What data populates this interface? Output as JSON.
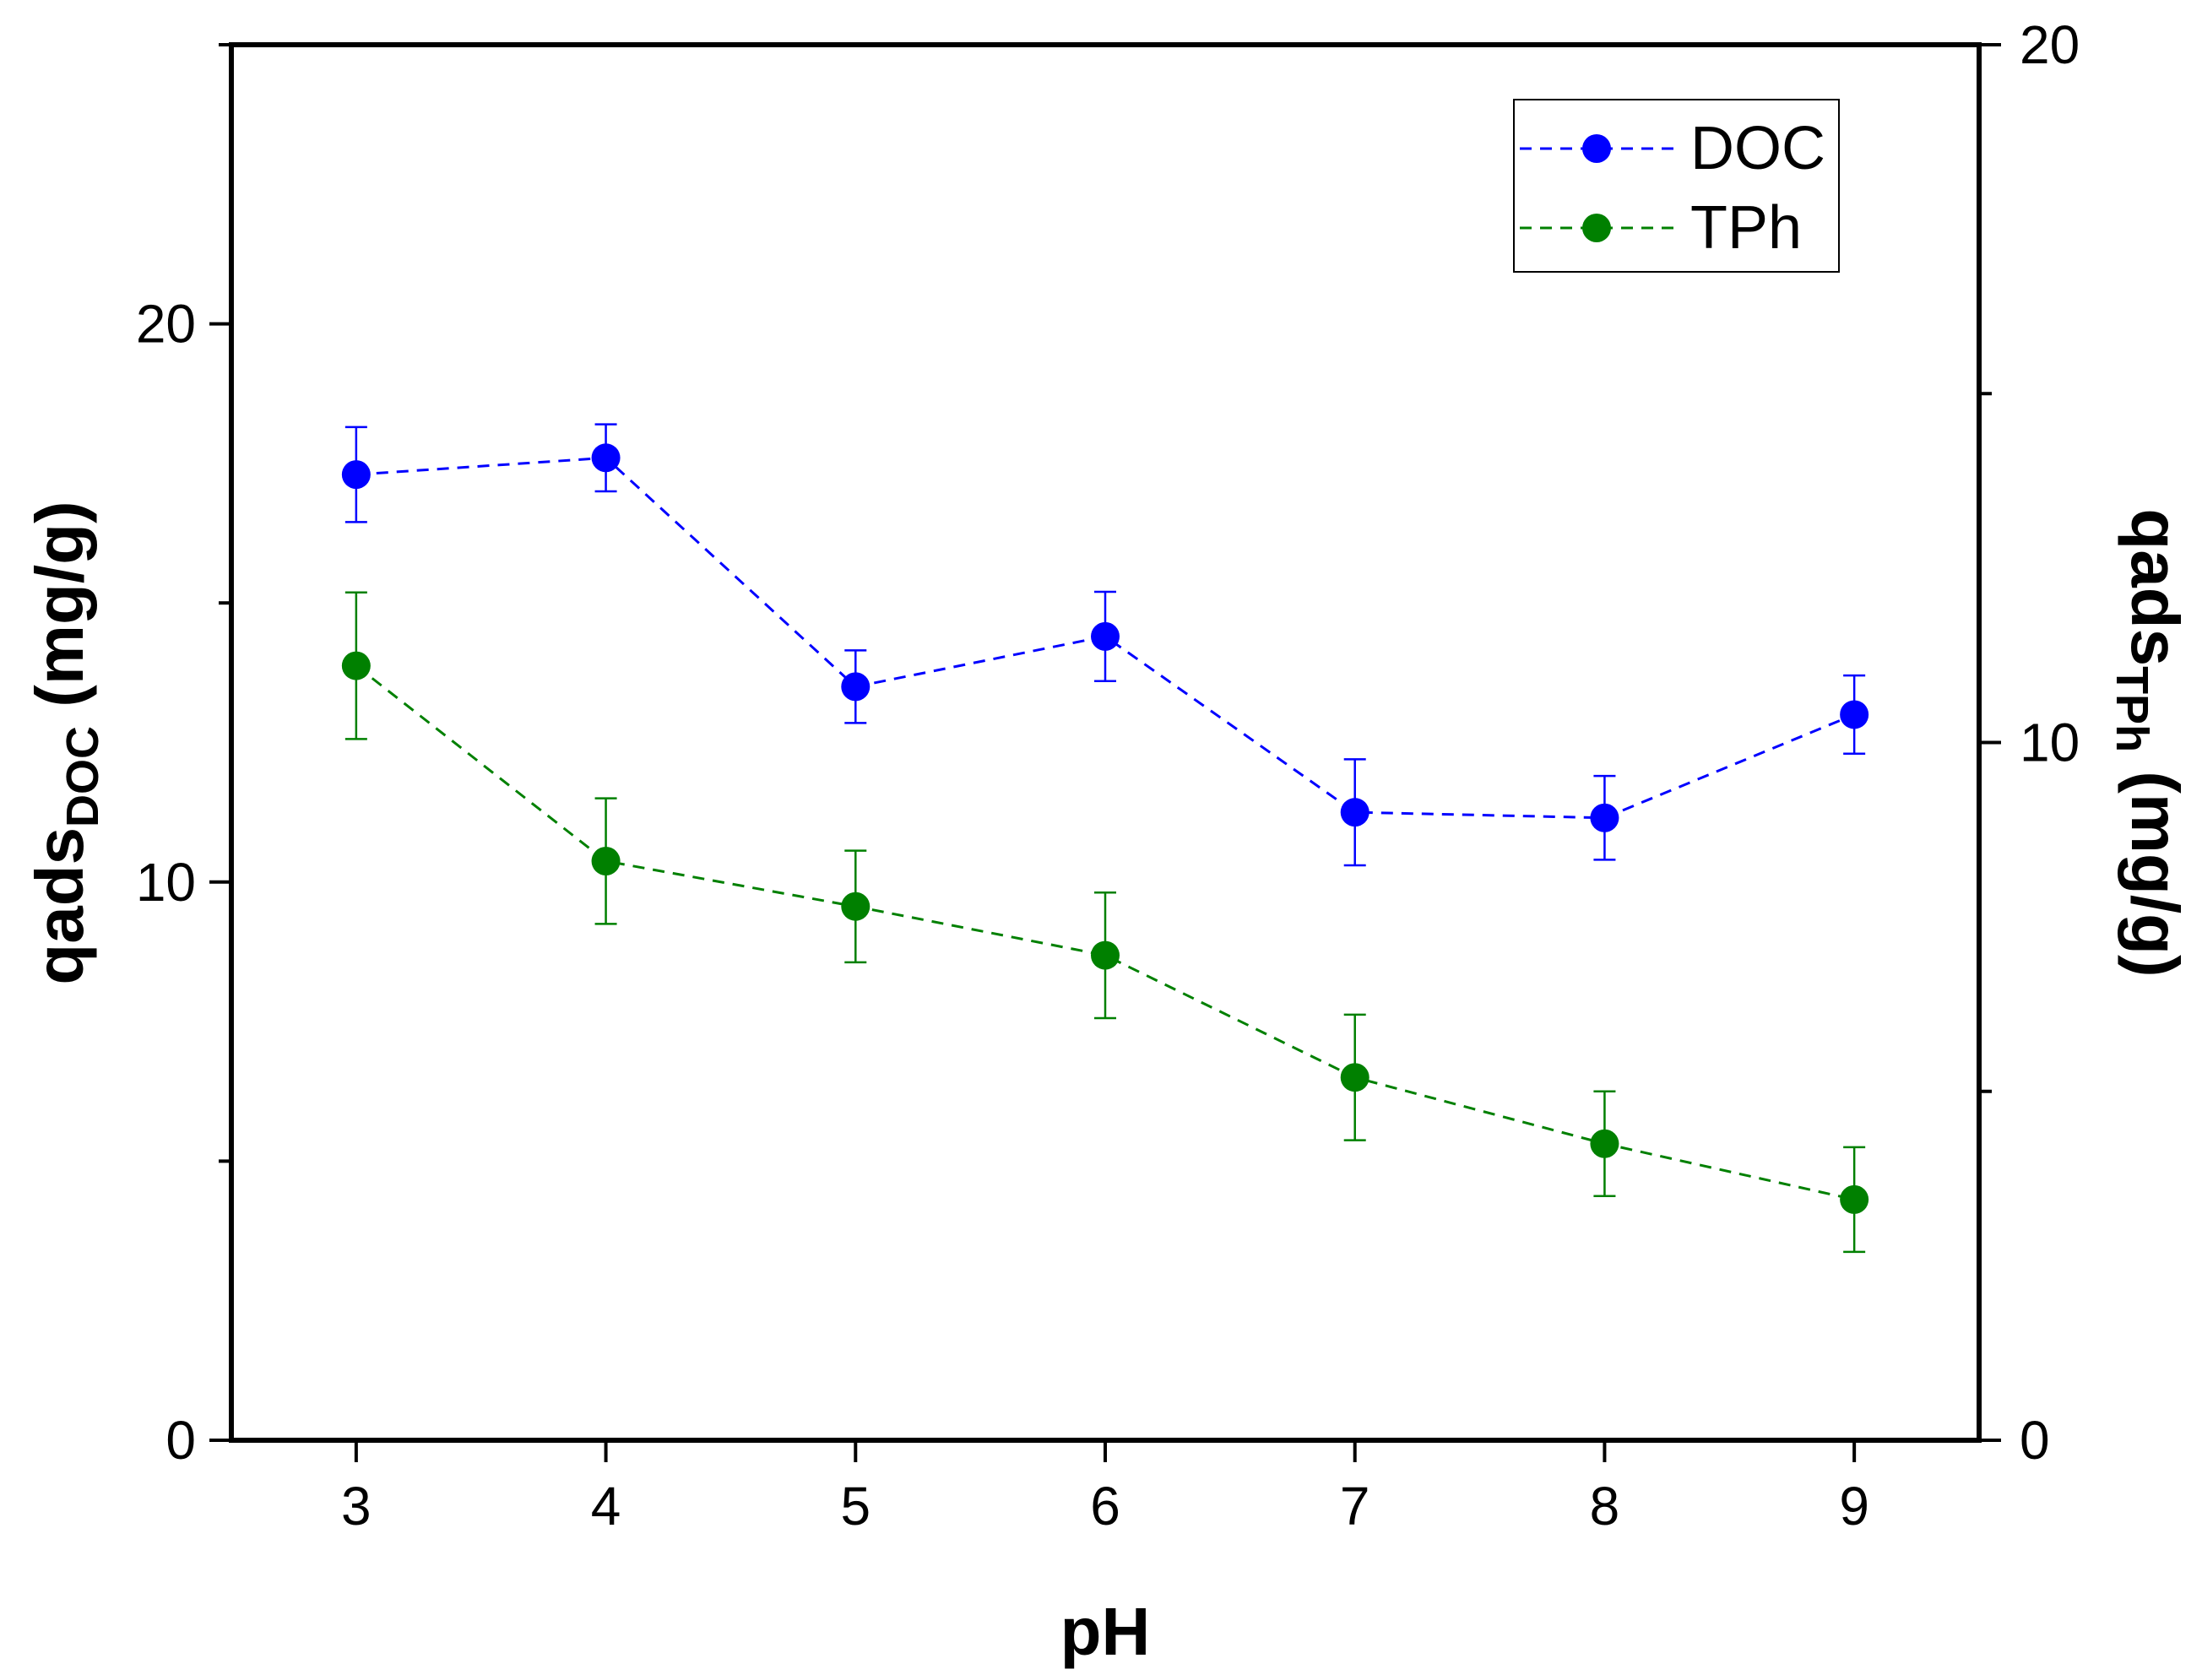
{
  "chart_data": {
    "type": "line",
    "title": "",
    "x": [
      3,
      4,
      5,
      6,
      7,
      8,
      9
    ],
    "xlabel": "pH",
    "xlim": [
      2.5,
      9.5
    ],
    "ylabel_left": {
      "main": "qads",
      "sub": "DOC",
      "unit": " (mg/g)"
    },
    "ylabel_right": {
      "main": "qads",
      "sub": "TPh",
      "unit": " (mg/g)"
    },
    "ylim_left": [
      0,
      25
    ],
    "ylim_right": [
      0,
      20
    ],
    "left_ticks": [
      "0",
      "10",
      "20"
    ],
    "right_ticks": [
      "0",
      "10",
      "20"
    ],
    "x_ticks": [
      "3",
      "4",
      "5",
      "6",
      "7",
      "8",
      "9"
    ],
    "grid": false,
    "legend_position": "top-right",
    "series": [
      {
        "name": "DOC",
        "axis": "left",
        "color": "#0000ff",
        "values": [
          17.3,
          17.6,
          13.5,
          14.4,
          11.25,
          11.15,
          13.0
        ],
        "errors": [
          0.85,
          0.6,
          0.65,
          0.8,
          0.95,
          0.75,
          0.7
        ]
      },
      {
        "name": "TPh",
        "axis": "right",
        "color": "#008000",
        "values": [
          11.1,
          8.3,
          7.65,
          6.95,
          5.2,
          4.25,
          3.45
        ],
        "errors": [
          1.05,
          0.9,
          0.8,
          0.9,
          0.9,
          0.75,
          0.75
        ]
      }
    ]
  }
}
